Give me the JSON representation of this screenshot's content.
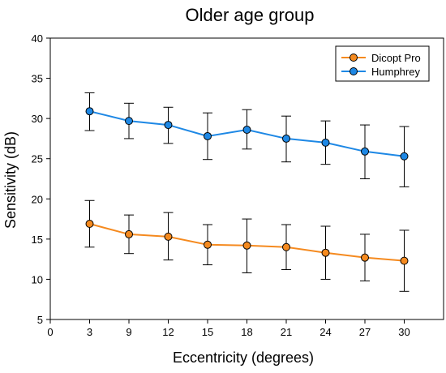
{
  "chart_data": {
    "type": "line",
    "title": "Older age group",
    "xlabel": "Eccentricity (degrees)",
    "ylabel": "Sensitivity (dB)",
    "xlim": [
      0,
      33
    ],
    "ylim": [
      5,
      40
    ],
    "x_ticks": [
      0,
      3,
      9,
      12,
      15,
      18,
      21,
      24,
      27,
      30
    ],
    "y_ticks": [
      5,
      10,
      15,
      20,
      25,
      30,
      35,
      40
    ],
    "grid": false,
    "legend_position": "top-right",
    "x_categorical": true,
    "series": [
      {
        "name": "Dicopt Pro",
        "color": "#F58A1F",
        "x": [
          3,
          9,
          12,
          15,
          18,
          21,
          24,
          27,
          30
        ],
        "y": [
          16.9,
          15.6,
          15.3,
          14.3,
          14.2,
          14.0,
          13.3,
          12.7,
          12.3
        ],
        "err_low": [
          14.0,
          13.2,
          12.4,
          11.8,
          10.8,
          11.2,
          10.0,
          9.8,
          8.5
        ],
        "err_high": [
          19.8,
          18.0,
          18.3,
          16.8,
          17.5,
          16.8,
          16.6,
          15.6,
          16.1
        ]
      },
      {
        "name": "Humphrey",
        "color": "#1E88E5",
        "x": [
          3,
          9,
          12,
          15,
          18,
          21,
          24,
          27,
          30
        ],
        "y": [
          30.9,
          29.7,
          29.2,
          27.8,
          28.6,
          27.5,
          27.0,
          25.9,
          25.3
        ],
        "err_low": [
          28.5,
          27.5,
          26.9,
          24.9,
          26.2,
          24.6,
          24.3,
          22.5,
          21.5
        ],
        "err_high": [
          33.2,
          31.9,
          31.4,
          30.7,
          31.1,
          30.3,
          29.7,
          29.2,
          29.0
        ]
      }
    ]
  }
}
